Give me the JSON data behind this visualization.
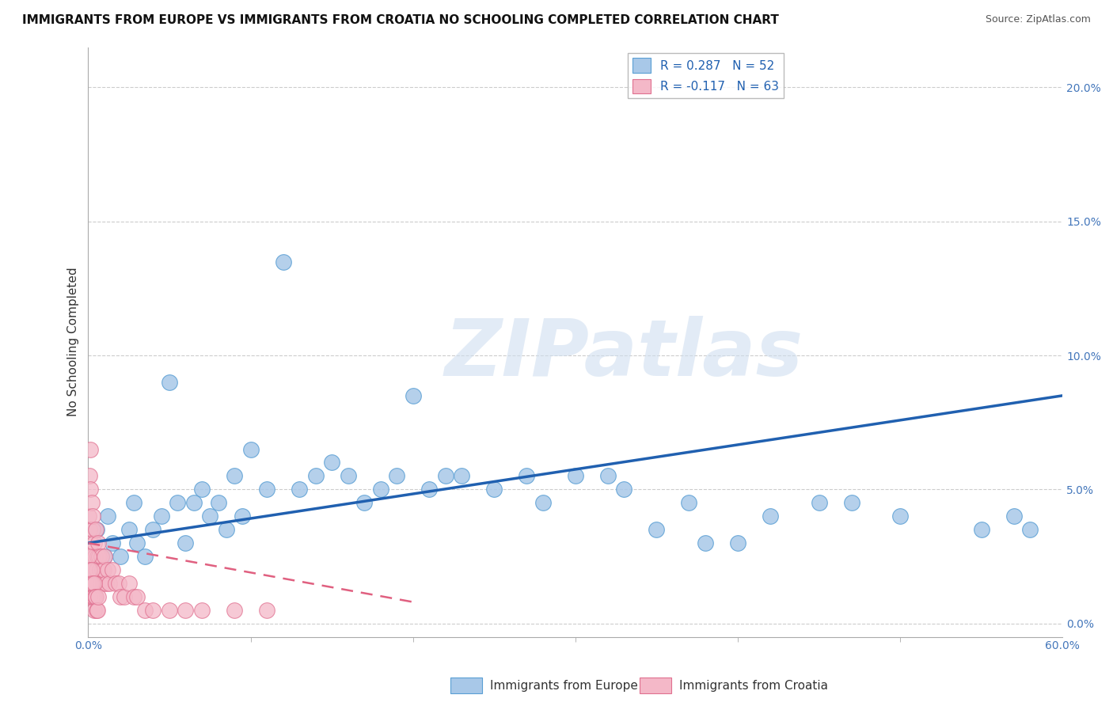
{
  "title": "IMMIGRANTS FROM EUROPE VS IMMIGRANTS FROM CROATIA NO SCHOOLING COMPLETED CORRELATION CHART",
  "source": "Source: ZipAtlas.com",
  "ylabel": "No Schooling Completed",
  "ytick_values": [
    0.0,
    5.0,
    10.0,
    15.0,
    20.0
  ],
  "ytick_labels": [
    "0.0%",
    "5.0%",
    "10.0%",
    "15.0%",
    "20.0%"
  ],
  "xlim": [
    0.0,
    60.0
  ],
  "ylim": [
    -0.5,
    21.5
  ],
  "legend_entry1": "R = 0.287   N = 52",
  "legend_entry2": "R = -0.117   N = 63",
  "legend_label1": "Immigrants from Europe",
  "legend_label2": "Immigrants from Croatia",
  "color_blue": "#a8c8e8",
  "color_blue_edge": "#5a9fd4",
  "color_pink": "#f4b8c8",
  "color_pink_edge": "#e07090",
  "color_blue_line": "#2060b0",
  "color_pink_line": "#e06080",
  "watermark_text": "ZIPatlas",
  "blue_line_x": [
    0.0,
    60.0
  ],
  "blue_line_y": [
    3.0,
    8.5
  ],
  "pink_line_x": [
    0.0,
    20.0
  ],
  "pink_line_y": [
    3.0,
    0.8
  ],
  "blue_x": [
    0.5,
    1.0,
    1.2,
    1.5,
    2.0,
    2.5,
    2.8,
    3.0,
    3.5,
    4.0,
    4.5,
    5.0,
    5.5,
    6.0,
    6.5,
    7.0,
    7.5,
    8.0,
    8.5,
    9.0,
    9.5,
    10.0,
    11.0,
    12.0,
    13.0,
    14.0,
    15.0,
    16.0,
    17.0,
    18.0,
    19.0,
    20.0,
    21.0,
    22.0,
    23.0,
    25.0,
    27.0,
    28.0,
    30.0,
    32.0,
    33.0,
    35.0,
    37.0,
    38.0,
    40.0,
    42.0,
    45.0,
    47.0,
    50.0,
    55.0,
    57.0,
    58.0
  ],
  "blue_y": [
    3.5,
    2.5,
    4.0,
    3.0,
    2.5,
    3.5,
    4.5,
    3.0,
    2.5,
    3.5,
    4.0,
    9.0,
    4.5,
    3.0,
    4.5,
    5.0,
    4.0,
    4.5,
    3.5,
    5.5,
    4.0,
    6.5,
    5.0,
    13.5,
    5.0,
    5.5,
    6.0,
    5.5,
    4.5,
    5.0,
    5.5,
    8.5,
    5.0,
    5.5,
    5.5,
    5.0,
    5.5,
    4.5,
    5.5,
    5.5,
    5.0,
    3.5,
    4.5,
    3.0,
    3.0,
    4.0,
    4.5,
    4.5,
    4.0,
    3.5,
    4.0,
    3.5
  ],
  "pink_x": [
    0.05,
    0.08,
    0.1,
    0.12,
    0.15,
    0.18,
    0.2,
    0.22,
    0.25,
    0.28,
    0.3,
    0.35,
    0.4,
    0.45,
    0.5,
    0.55,
    0.6,
    0.65,
    0.7,
    0.75,
    0.8,
    0.85,
    0.9,
    0.95,
    1.0,
    1.1,
    1.2,
    1.3,
    1.5,
    1.7,
    1.9,
    2.0,
    2.2,
    2.5,
    2.8,
    3.0,
    3.5,
    4.0,
    5.0,
    6.0,
    7.0,
    9.0,
    11.0,
    0.05,
    0.1,
    0.15,
    0.2,
    0.25,
    0.3,
    0.35,
    0.05,
    0.08,
    0.12,
    0.18,
    0.22,
    0.28,
    0.32,
    0.38,
    0.42,
    0.48,
    0.52,
    0.58,
    0.62
  ],
  "pink_y": [
    4.0,
    5.5,
    3.5,
    6.5,
    5.0,
    3.0,
    4.5,
    2.5,
    3.5,
    4.0,
    2.0,
    3.0,
    2.5,
    3.5,
    2.0,
    2.5,
    3.0,
    2.5,
    2.0,
    1.5,
    2.5,
    2.0,
    1.5,
    2.0,
    2.5,
    1.5,
    2.0,
    1.5,
    2.0,
    1.5,
    1.5,
    1.0,
    1.0,
    1.5,
    1.0,
    1.0,
    0.5,
    0.5,
    0.5,
    0.5,
    0.5,
    0.5,
    0.5,
    1.5,
    1.0,
    1.5,
    1.0,
    1.5,
    1.0,
    0.5,
    2.5,
    2.0,
    1.5,
    1.5,
    2.0,
    1.5,
    1.0,
    1.5,
    1.0,
    1.0,
    0.5,
    0.5,
    1.0
  ],
  "background_color": "#ffffff",
  "grid_color": "#cccccc",
  "title_fontsize": 11,
  "tick_fontsize": 10,
  "dot_size": 200
}
